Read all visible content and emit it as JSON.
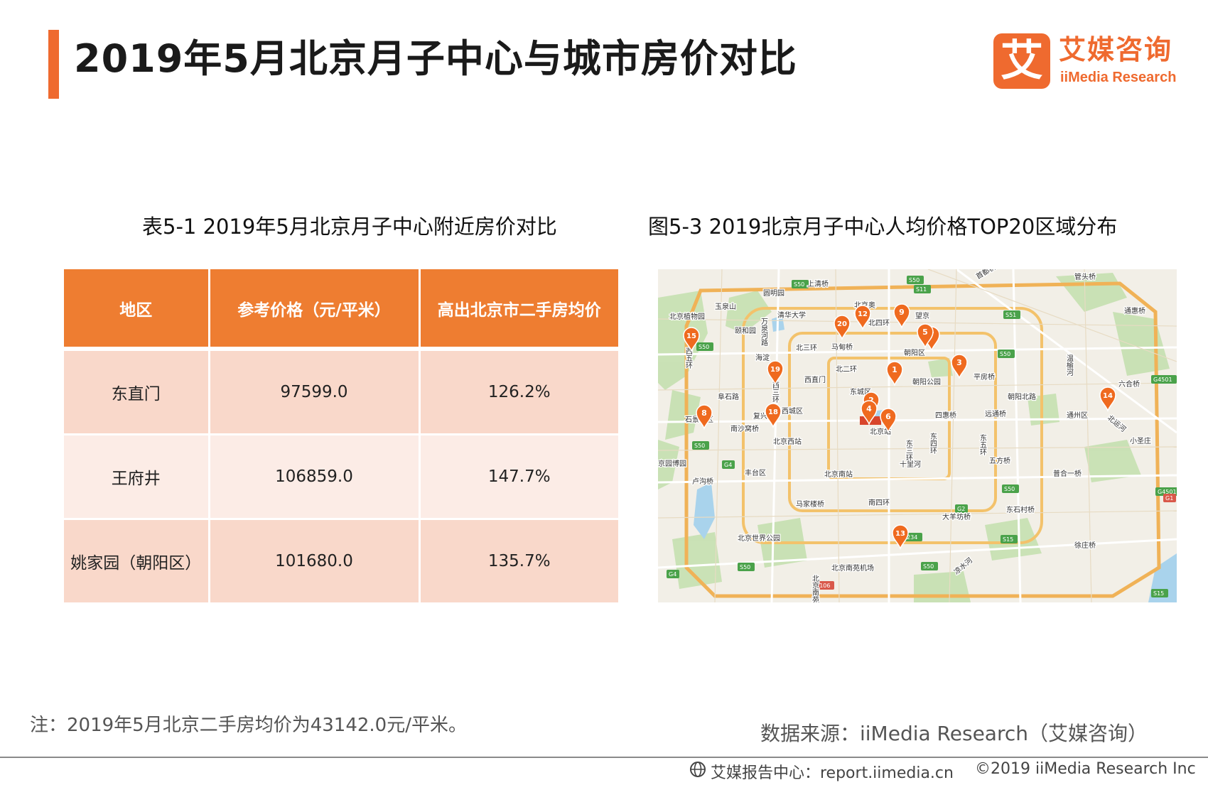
{
  "header": {
    "title": "2019年5月北京月子中心与城市房价对比",
    "logo_mark": "艾",
    "logo_cn": "艾媒咨询",
    "logo_en": "iiMedia Research"
  },
  "table_title": "表5-1 2019年5月北京月子中心附近房价对比",
  "map_title": "图5-3 2019北京月子中心人均价格TOP20区域分布",
  "table": {
    "columns": [
      "地区",
      "参考价格（元/平米）",
      "高出北京市二手房均价"
    ],
    "rows": [
      [
        "东直门",
        "97599.0",
        "126.2%"
      ],
      [
        "王府井",
        "106859.0",
        "147.7%"
      ],
      [
        "姚家园（朝阳区）",
        "101680.0",
        "135.7%"
      ]
    ]
  },
  "map": {
    "labels": [
      {
        "t": "上清桥"
      },
      {
        "t": "圆明园"
      },
      {
        "t": "玉泉山"
      },
      {
        "t": "北京植物园"
      },
      {
        "t": "颐和园"
      },
      {
        "t": "清华大学"
      },
      {
        "t": "北京奥"
      },
      {
        "t": "公园"
      },
      {
        "t": "北四环"
      },
      {
        "t": "北三环"
      },
      {
        "t": "马甸桥"
      },
      {
        "t": "海淀"
      },
      {
        "t": "北二环"
      },
      {
        "t": "西直门"
      },
      {
        "t": "朝阳区"
      },
      {
        "t": "望京"
      },
      {
        "t": "朝阳公园"
      },
      {
        "t": "平房桥"
      },
      {
        "t": "朝阳北路"
      },
      {
        "t": "通州区"
      },
      {
        "t": "北运河"
      },
      {
        "t": "通惠桥"
      },
      {
        "t": "六合桥"
      },
      {
        "t": "阜石路"
      },
      {
        "t": "石景山区"
      },
      {
        "t": "西城区"
      },
      {
        "t": "东城区"
      },
      {
        "t": "复兴路"
      },
      {
        "t": "南沙窝桥"
      },
      {
        "t": "北京站"
      },
      {
        "t": "北京西站"
      },
      {
        "t": "四惠桥"
      },
      {
        "t": "远通桥"
      },
      {
        "t": "小圣庄"
      },
      {
        "t": "五方桥"
      },
      {
        "t": "十里河"
      },
      {
        "t": "丰台区"
      },
      {
        "t": "北京南站"
      },
      {
        "t": "普合一桥"
      },
      {
        "t": "卢沟桥"
      },
      {
        "t": "东石村桥"
      },
      {
        "t": "马家楼桥"
      },
      {
        "t": "南四环"
      },
      {
        "t": "大羊坊桥"
      },
      {
        "t": "北京世界公园"
      },
      {
        "t": "北京南苑机场"
      },
      {
        "t": "徐庄桥"
      },
      {
        "t": "首都机场"
      },
      {
        "t": "管头桥"
      },
      {
        "t": "温榆河"
      },
      {
        "t": "京园博园"
      },
      {
        "t": "东三环"
      },
      {
        "t": "东四环"
      },
      {
        "t": "东五环"
      },
      {
        "t": "西三环"
      },
      {
        "t": "万泉河路"
      },
      {
        "t": "西五环"
      },
      {
        "t": "凉水河"
      },
      {
        "t": "北京南苑"
      }
    ],
    "markers": [
      {
        "n": "15"
      },
      {
        "n": "20"
      },
      {
        "n": "12"
      },
      {
        "n": "9"
      },
      {
        "n": "7"
      },
      {
        "n": "5"
      },
      {
        "n": "19"
      },
      {
        "n": "1"
      },
      {
        "n": "3"
      },
      {
        "n": "14"
      },
      {
        "n": "8"
      },
      {
        "n": "18"
      },
      {
        "n": "2"
      },
      {
        "n": "4"
      },
      {
        "n": "6"
      },
      {
        "n": "13"
      }
    ],
    "badges": [
      {
        "t": "S50"
      },
      {
        "t": "S11"
      },
      {
        "t": "S50"
      },
      {
        "t": "S51"
      },
      {
        "t": "S50"
      },
      {
        "t": "G4501"
      },
      {
        "t": "S50"
      },
      {
        "t": "G4"
      },
      {
        "t": "S50"
      },
      {
        "t": "S50"
      },
      {
        "t": "G2"
      },
      {
        "t": "S15"
      },
      {
        "t": "G4501"
      },
      {
        "t": "G1"
      },
      {
        "t": "S234"
      },
      {
        "t": "S50"
      },
      {
        "t": "G4"
      },
      {
        "t": "S50"
      },
      {
        "t": "G106"
      },
      {
        "t": "S15"
      }
    ]
  },
  "note": "注：2019年5月北京二手房均价为43142.0元/平米。",
  "source": "数据来源：iiMedia Research（艾媒咨询）",
  "footer": {
    "left": "艾媒报告中心：report.iimedia.cn",
    "right": "©2019  iiMedia Research  Inc"
  }
}
